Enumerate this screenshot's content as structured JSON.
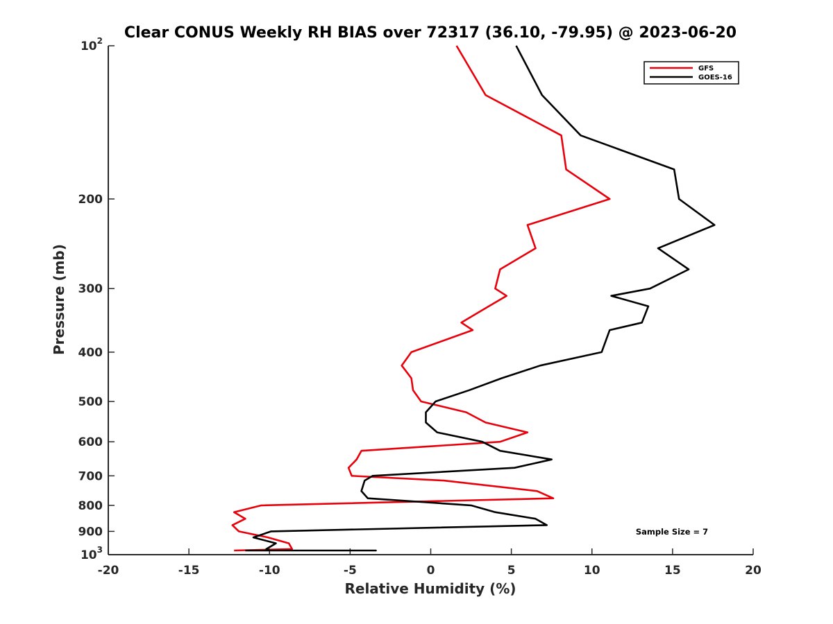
{
  "chart_data": {
    "type": "line",
    "title": "Clear CONUS Weekly RH BIAS over 72317 (36.10, -79.95) @ 2023-06-20",
    "xlabel": "Relative Humidity (%)",
    "ylabel": "Pressure (mb)",
    "xlim": [
      -20,
      20
    ],
    "ylim": [
      1000,
      100
    ],
    "y_scale": "log",
    "y_reversed": true,
    "grid": false,
    "legend_position": "top-right",
    "x_ticks": [
      -20,
      -15,
      -10,
      -5,
      0,
      5,
      10,
      15,
      20
    ],
    "x_tick_labels": [
      "-20",
      "-15",
      "-10",
      "-5",
      "0",
      "5",
      "10",
      "15",
      "20"
    ],
    "y_ticks": [
      {
        "value": 100,
        "base": "10",
        "exp": "2"
      },
      {
        "value": 200,
        "base": "200",
        "exp": ""
      },
      {
        "value": 300,
        "base": "300",
        "exp": ""
      },
      {
        "value": 400,
        "base": "400",
        "exp": ""
      },
      {
        "value": 500,
        "base": "500",
        "exp": ""
      },
      {
        "value": 600,
        "base": "600",
        "exp": ""
      },
      {
        "value": 700,
        "base": "700",
        "exp": ""
      },
      {
        "value": 800,
        "base": "800",
        "exp": ""
      },
      {
        "value": 900,
        "base": "900",
        "exp": ""
      },
      {
        "value": 1000,
        "base": "10",
        "exp": "3"
      }
    ],
    "series": [
      {
        "name": "GFS",
        "color": "#e8000b",
        "points": [
          [
            1.6,
            100
          ],
          [
            3.4,
            125
          ],
          [
            8.1,
            150
          ],
          [
            8.4,
            175
          ],
          [
            11.1,
            200
          ],
          [
            6.0,
            225
          ],
          [
            6.5,
            250
          ],
          [
            4.3,
            275
          ],
          [
            4.0,
            300
          ],
          [
            4.7,
            310
          ],
          [
            3.6,
            325
          ],
          [
            1.9,
            350
          ],
          [
            2.6,
            362
          ],
          [
            -1.2,
            400
          ],
          [
            -1.8,
            425
          ],
          [
            -1.2,
            450
          ],
          [
            -1.1,
            475
          ],
          [
            -0.6,
            500
          ],
          [
            2.2,
            525
          ],
          [
            3.4,
            550
          ],
          [
            6.0,
            575
          ],
          [
            4.3,
            600
          ],
          [
            -4.3,
            625
          ],
          [
            -4.6,
            650
          ],
          [
            -5.1,
            675
          ],
          [
            -4.9,
            700
          ],
          [
            0.8,
            715
          ],
          [
            6.6,
            750
          ],
          [
            7.6,
            775
          ],
          [
            -10.5,
            800
          ],
          [
            -12.2,
            825
          ],
          [
            -11.5,
            850
          ],
          [
            -12.3,
            875
          ],
          [
            -11.9,
            900
          ],
          [
            -10.1,
            925
          ],
          [
            -8.8,
            950
          ],
          [
            -8.6,
            975
          ],
          [
            -12.2,
            1000
          ]
        ]
      },
      {
        "name": "GOES-16",
        "color": "#000000",
        "points": [
          [
            5.3,
            100
          ],
          [
            6.9,
            125
          ],
          [
            9.3,
            150
          ],
          [
            15.1,
            175
          ],
          [
            15.4,
            200
          ],
          [
            17.6,
            225
          ],
          [
            14.1,
            250
          ],
          [
            16.0,
            275
          ],
          [
            13.6,
            300
          ],
          [
            11.2,
            310
          ],
          [
            13.5,
            325
          ],
          [
            13.1,
            350
          ],
          [
            11.1,
            362
          ],
          [
            10.6,
            400
          ],
          [
            6.8,
            425
          ],
          [
            4.4,
            450
          ],
          [
            2.4,
            475
          ],
          [
            0.3,
            500
          ],
          [
            -0.3,
            525
          ],
          [
            -0.3,
            550
          ],
          [
            0.4,
            575
          ],
          [
            3.2,
            600
          ],
          [
            4.3,
            625
          ],
          [
            7.5,
            650
          ],
          [
            5.2,
            675
          ],
          [
            -3.6,
            700
          ],
          [
            -4.1,
            715
          ],
          [
            -4.3,
            750
          ],
          [
            -3.9,
            775
          ],
          [
            2.5,
            800
          ],
          [
            4.0,
            825
          ],
          [
            6.5,
            850
          ],
          [
            7.2,
            875
          ],
          [
            -9.9,
            900
          ],
          [
            -11.0,
            925
          ],
          [
            -9.6,
            950
          ],
          [
            -10.2,
            975
          ],
          [
            -10.0,
            1000
          ],
          [
            -9.5,
            1025
          ],
          [
            -5.2,
            1050
          ],
          [
            -3.4,
            1075
          ],
          [
            -11.5,
            1100
          ]
        ]
      }
    ],
    "annotation": "Sample Size = 7"
  }
}
